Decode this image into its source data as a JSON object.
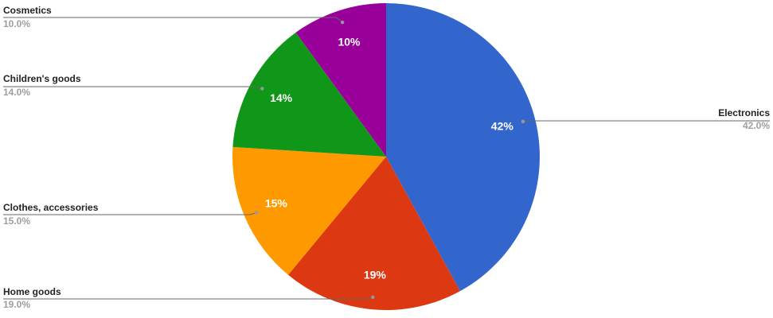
{
  "chart_data": {
    "type": "pie",
    "categories": [
      "Electronics",
      "Home goods",
      "Clothes, accessories",
      "Children's goods",
      "Cosmetics"
    ],
    "values": [
      42,
      19,
      15,
      14,
      10
    ],
    "value_labels": [
      "42%",
      "19%",
      "15%",
      "14%",
      "10%"
    ],
    "legend_labels": [
      "42.0%",
      "19.0%",
      "15.0%",
      "14.0%",
      "10.0%"
    ],
    "colors": [
      "#3366cc",
      "#dc3912",
      "#ff9900",
      "#109618",
      "#990099"
    ]
  }
}
